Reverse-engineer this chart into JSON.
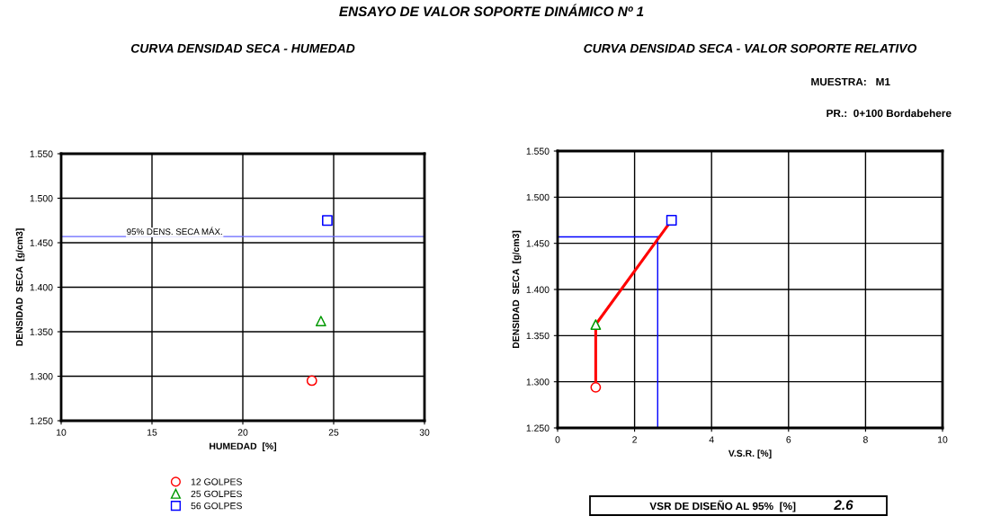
{
  "chart_data": [
    {
      "type": "scatter",
      "title": "CURVA DENSIDAD SECA - HUMEDAD",
      "xlabel": "HUMEDAD  [%]",
      "ylabel": "DENSIDAD  SECA  [g/cm3]",
      "xlim": [
        10,
        30
      ],
      "xticks": [
        10,
        15,
        20,
        25,
        30
      ],
      "ylim": [
        1.25,
        1.55
      ],
      "yticks": [
        {
          "value": 1.25,
          "label": "1.250"
        },
        {
          "value": 1.3,
          "label": "1.300"
        },
        {
          "value": 1.35,
          "label": "1.350"
        },
        {
          "value": 1.4,
          "label": "1.400"
        },
        {
          "value": 1.45,
          "label": "1.450"
        },
        {
          "value": 1.5,
          "label": "1.500"
        },
        {
          "value": 1.55,
          "label": "1.550"
        }
      ],
      "grid": true,
      "legend": "bottom",
      "series": [
        {
          "name": "12 GOLPES",
          "color": "#ff0000",
          "marker": "circle",
          "x": [
            23.8
          ],
          "values": [
            1.295
          ]
        },
        {
          "name": "25 GOLPES",
          "color": "#009900",
          "marker": "triangle",
          "x": [
            24.3
          ],
          "values": [
            1.362
          ]
        },
        {
          "name": "56 GOLPES",
          "color": "#0000ff",
          "marker": "square",
          "x": [
            24.65
          ],
          "values": [
            1.475
          ]
        }
      ],
      "ref_lines": [
        {
          "axis": "y",
          "value": 1.457,
          "label": "95% DENS. SECA MÁX.",
          "color": "#6666ff"
        }
      ],
      "annotations": [
        "ENSAYO DE VALOR SOPORTE DINÁMICO Nº 1"
      ]
    },
    {
      "type": "scatter",
      "title": "CURVA DENSIDAD SECA - VALOR SOPORTE RELATIVO",
      "xlabel": "V.S.R. [%]",
      "ylabel": "DENSIDAD  SECA  [g/cm3]",
      "xlim": [
        0,
        10
      ],
      "xticks": [
        0,
        2,
        4,
        6,
        8,
        10
      ],
      "ylim": [
        1.25,
        1.55
      ],
      "yticks": [
        {
          "value": 1.25,
          "label": "1.250"
        },
        {
          "value": 1.3,
          "label": "1.300"
        },
        {
          "value": 1.35,
          "label": "1.350"
        },
        {
          "value": 1.4,
          "label": "1.400"
        },
        {
          "value": 1.45,
          "label": "1.450"
        },
        {
          "value": 1.5,
          "label": "1.500"
        },
        {
          "value": 1.55,
          "label": "1.550"
        }
      ],
      "grid": true,
      "series": [
        {
          "type": "line",
          "color": "#ff0000",
          "marker": "none",
          "x": [
            0.99,
            0.99,
            2.96
          ],
          "values": [
            1.294,
            1.362,
            1.475
          ]
        },
        {
          "color": "#ff0000",
          "marker": "circle",
          "x": [
            0.99
          ],
          "values": [
            1.294
          ]
        },
        {
          "color": "#009900",
          "marker": "triangle",
          "x": [
            0.99
          ],
          "values": [
            1.362
          ]
        },
        {
          "color": "#0000ff",
          "marker": "square",
          "x": [
            2.96
          ],
          "values": [
            1.475
          ]
        }
      ],
      "ref_lines": [
        {
          "axis": "x",
          "value": 2.6,
          "color": "#0000ff"
        },
        {
          "axis": "y",
          "value": 1.457,
          "color": "#0000ff"
        }
      ],
      "annotations": [
        "MUESTRA:   M1",
        "PR.:  0+100 Bordabehere",
        "VSR DE DISEÑO AL 95%  [%]",
        "2.6"
      ]
    }
  ]
}
